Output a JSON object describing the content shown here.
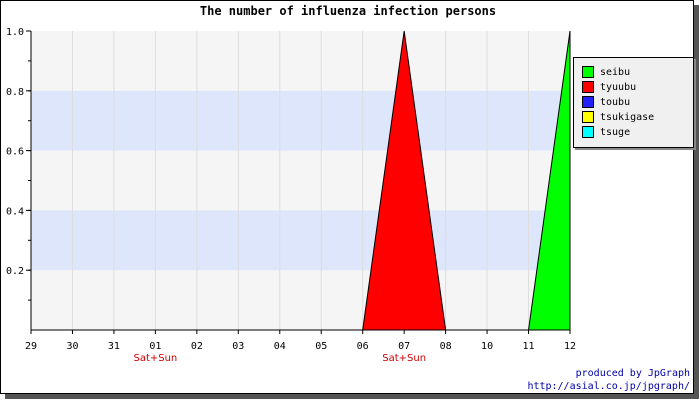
{
  "chart_data": {
    "type": "area",
    "title": "The number of influenza infection persons",
    "xlabel": "",
    "ylabel": "",
    "categories": [
      "29",
      "30",
      "31",
      "01",
      "02",
      "03",
      "04",
      "05",
      "06",
      "07",
      "08",
      "10",
      "11",
      "12"
    ],
    "ylim": [
      0,
      1.0
    ],
    "yticks": [
      "0.2",
      "0.4",
      "0.6",
      "0.8",
      "1.0"
    ],
    "grid": true,
    "legend_placement": "right",
    "series": [
      {
        "name": "seibu",
        "color": "#00ff00",
        "values": [
          0,
          0,
          0,
          0,
          0,
          0,
          0,
          0,
          0,
          0,
          0,
          0,
          0,
          1.0
        ]
      },
      {
        "name": "tyuubu",
        "color": "#ff0000",
        "values": [
          0,
          0,
          0,
          0,
          0,
          0,
          0,
          0,
          0,
          1.0,
          0,
          0,
          0,
          0
        ]
      },
      {
        "name": "toubu",
        "color": "#2020ff",
        "values": [
          0,
          0,
          0,
          0,
          0,
          0,
          0,
          0,
          0,
          0,
          0,
          0,
          0,
          0
        ]
      },
      {
        "name": "tsukigase",
        "color": "#ffff00",
        "values": [
          0,
          0,
          0,
          0,
          0,
          0,
          0,
          0,
          0,
          0,
          0,
          0,
          0,
          0
        ]
      },
      {
        "name": "tsuge",
        "color": "#00ffff",
        "values": [
          0,
          0,
          0,
          0,
          0,
          0,
          0,
          0,
          0,
          0,
          0,
          0,
          0,
          0
        ]
      }
    ],
    "weekend_markers": [
      {
        "category": "01",
        "text": "Sat+Sun"
      },
      {
        "category": "07",
        "text": "Sat+Sun"
      }
    ]
  },
  "legend": {
    "items": [
      {
        "label": "seibu",
        "color": "#00ff00"
      },
      {
        "label": "tyuubu",
        "color": "#ff0000"
      },
      {
        "label": "toubu",
        "color": "#2020ff"
      },
      {
        "label": "tsukigase",
        "color": "#ffff00"
      },
      {
        "label": "tsuge",
        "color": "#00ffff"
      }
    ]
  },
  "credits": {
    "line1": "produced by JpGraph",
    "line2": "http://asial.co.jp/jpgraph/"
  }
}
